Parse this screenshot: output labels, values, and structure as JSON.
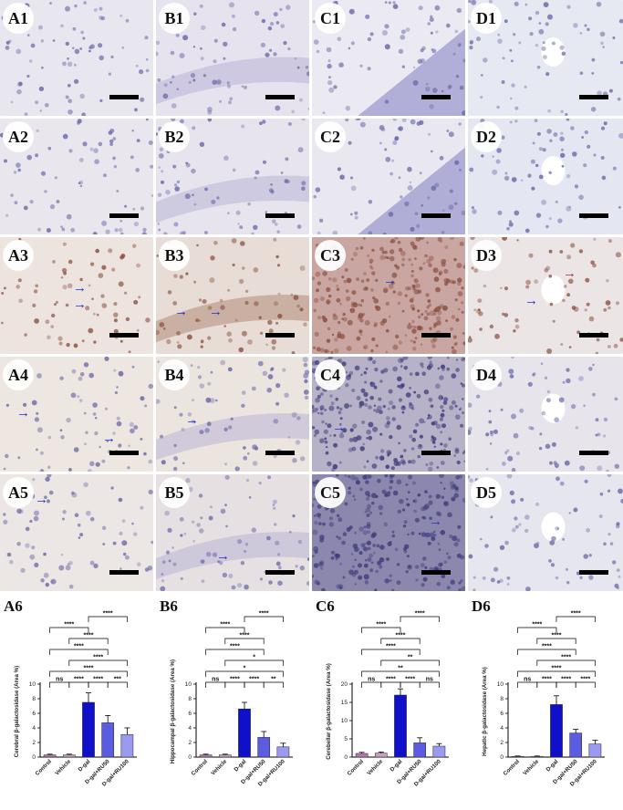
{
  "panel_labels": [
    [
      "A1",
      "B1",
      "C1",
      "D1"
    ],
    [
      "A2",
      "B2",
      "C2",
      "D2"
    ],
    [
      "A3",
      "B3",
      "C3",
      "D3"
    ],
    [
      "A4",
      "B4",
      "C4",
      "D4"
    ],
    [
      "A5",
      "B5",
      "C5",
      "D5"
    ]
  ],
  "colors": {
    "bar_dgal": "#1010c8",
    "bar_ru50": "#5c5ce0",
    "bar_ru100": "#9a9af0",
    "bar_control": "#b07aa8",
    "bar_vehicle": "#c8a0c4",
    "arrow": "#1f2fd0"
  },
  "chart_data": [
    {
      "type": "bar",
      "panel_label": "A6",
      "ylabel": "Cerebral β-galactosidase (Area %)",
      "categories": [
        "Control",
        "Vehicle",
        "D-gal",
        "D-gal+RU50",
        "D-gal+RU100"
      ],
      "values": [
        0.3,
        0.3,
        7.5,
        4.7,
        3.1
      ],
      "errors": [
        0.1,
        0.1,
        1.3,
        1.0,
        0.9
      ],
      "ylim": [
        0,
        10
      ],
      "yticks": [
        "0",
        "2",
        "4",
        "6",
        "8",
        "10"
      ],
      "comparisons": [
        {
          "from": 0,
          "to": 4,
          "label": "****"
        },
        {
          "from": 1,
          "to": 4,
          "label": "****"
        },
        {
          "from": 0,
          "to": 3,
          "label": "****"
        },
        {
          "from": 1,
          "to": 3,
          "label": "****"
        },
        {
          "from": 0,
          "to": 2,
          "label": "****"
        },
        {
          "from": 2,
          "to": 4,
          "label": "****"
        },
        {
          "from": 0,
          "to": 1,
          "label": "ns"
        },
        {
          "from": 1,
          "to": 2,
          "label": "****"
        },
        {
          "from": 2,
          "to": 3,
          "label": "****"
        },
        {
          "from": 3,
          "to": 4,
          "label": "***"
        }
      ]
    },
    {
      "type": "bar",
      "panel_label": "B6",
      "ylabel": "Hippocampal β-galactosidase (Area %)",
      "categories": [
        "Control",
        "Vehicle",
        "D-gal",
        "D-gal+RU50",
        "D-gal+RU100"
      ],
      "values": [
        0.3,
        0.3,
        6.6,
        2.7,
        1.4
      ],
      "errors": [
        0.1,
        0.1,
        0.9,
        0.8,
        0.5
      ],
      "ylim": [
        0,
        10
      ],
      "yticks": [
        "0",
        "2",
        "4",
        "6",
        "8",
        "10"
      ],
      "comparisons": [
        {
          "from": 0,
          "to": 4,
          "label": "*"
        },
        {
          "from": 1,
          "to": 4,
          "label": "*"
        },
        {
          "from": 0,
          "to": 3,
          "label": "****"
        },
        {
          "from": 1,
          "to": 3,
          "label": "****"
        },
        {
          "from": 0,
          "to": 2,
          "label": "****"
        },
        {
          "from": 2,
          "to": 4,
          "label": "****"
        },
        {
          "from": 0,
          "to": 1,
          "label": "ns"
        },
        {
          "from": 1,
          "to": 2,
          "label": "****"
        },
        {
          "from": 2,
          "to": 3,
          "label": "****"
        },
        {
          "from": 3,
          "to": 4,
          "label": "**"
        }
      ]
    },
    {
      "type": "bar",
      "panel_label": "C6",
      "ylabel": "Cerebellar β-galactosidase (Area %)",
      "categories": [
        "Control",
        "Vehicle",
        "D-gal",
        "D-gal+RU50",
        "D-gal+RU100"
      ],
      "values": [
        1.0,
        1.1,
        17.0,
        3.9,
        3.0
      ],
      "errors": [
        0.3,
        0.3,
        1.7,
        1.4,
        0.7
      ],
      "ylim": [
        0,
        20
      ],
      "yticks": [
        "0",
        "5",
        "10",
        "15",
        "20"
      ],
      "comparisons": [
        {
          "from": 0,
          "to": 4,
          "label": "**"
        },
        {
          "from": 1,
          "to": 4,
          "label": "**"
        },
        {
          "from": 0,
          "to": 3,
          "label": "****"
        },
        {
          "from": 1,
          "to": 3,
          "label": "****"
        },
        {
          "from": 0,
          "to": 2,
          "label": "****"
        },
        {
          "from": 2,
          "to": 4,
          "label": "****"
        },
        {
          "from": 0,
          "to": 1,
          "label": "ns"
        },
        {
          "from": 1,
          "to": 2,
          "label": "****"
        },
        {
          "from": 2,
          "to": 3,
          "label": "****"
        },
        {
          "from": 3,
          "to": 4,
          "label": "ns"
        }
      ]
    },
    {
      "type": "bar",
      "panel_label": "D6",
      "ylabel": "Hepatic β-galactosidase (Area %)",
      "categories": [
        "Control",
        "Vehicle",
        "D-gal",
        "D-gal+RU50",
        "D-gal+RU100"
      ],
      "values": [
        0.1,
        0.1,
        7.2,
        3.3,
        1.8
      ],
      "errors": [
        0.05,
        0.05,
        1.2,
        0.5,
        0.5
      ],
      "ylim": [
        0,
        10
      ],
      "yticks": [
        "0",
        "2",
        "4",
        "6",
        "8",
        "10"
      ],
      "comparisons": [
        {
          "from": 0,
          "to": 4,
          "label": "****"
        },
        {
          "from": 1,
          "to": 4,
          "label": "****"
        },
        {
          "from": 0,
          "to": 3,
          "label": "****"
        },
        {
          "from": 1,
          "to": 3,
          "label": "****"
        },
        {
          "from": 0,
          "to": 2,
          "label": "****"
        },
        {
          "from": 2,
          "to": 4,
          "label": "****"
        },
        {
          "from": 0,
          "to": 1,
          "label": "ns"
        },
        {
          "from": 1,
          "to": 2,
          "label": "****"
        },
        {
          "from": 2,
          "to": 3,
          "label": "****"
        },
        {
          "from": 3,
          "to": 4,
          "label": "****"
        }
      ]
    }
  ]
}
